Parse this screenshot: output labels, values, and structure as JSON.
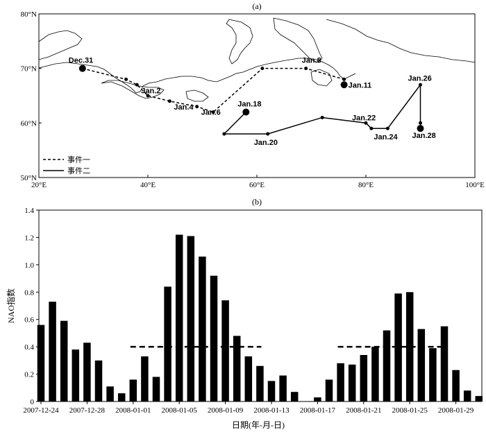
{
  "chart_data": [
    {
      "type": "map",
      "panel_label": "(a)",
      "lon_range": [
        20,
        100
      ],
      "lat_range": [
        50,
        80
      ],
      "x_ticks": [
        "20°E",
        "40°E",
        "60°E",
        "80°E",
        "100°E"
      ],
      "y_ticks": [
        "50°N",
        "60°N",
        "70°N",
        "80°N"
      ],
      "legend": [
        {
          "label": "事件一",
          "style": "dashed"
        },
        {
          "label": "事件二",
          "style": "solid"
        }
      ],
      "tracks": [
        {
          "style": "dashed",
          "points": [
            {
              "lon": 28,
              "lat": 70,
              "label": "Dec.31",
              "size": "large"
            },
            {
              "lon": 36,
              "lat": 68,
              "label": "",
              "size": "small"
            },
            {
              "lon": 38,
              "lat": 67,
              "label": "Jan.2",
              "size": "small"
            },
            {
              "lon": 40,
              "lat": 65,
              "label": "",
              "size": "small"
            },
            {
              "lon": 44,
              "lat": 64,
              "label": "Jan.4",
              "size": "small"
            },
            {
              "lon": 49,
              "lat": 63,
              "label": "Jan.6",
              "size": "small"
            },
            {
              "lon": 52,
              "lat": 62,
              "label": "",
              "size": "small"
            },
            {
              "lon": 61,
              "lat": 70,
              "label": "",
              "size": "small"
            },
            {
              "lon": 69,
              "lat": 70,
              "label": "Jan.8",
              "size": "small"
            },
            {
              "lon": 76,
              "lat": 68,
              "label": "",
              "size": "small"
            },
            {
              "lon": 76,
              "lat": 67,
              "label": "Jan.11",
              "size": "large"
            }
          ]
        },
        {
          "style": "solid",
          "points": [
            {
              "lon": 58,
              "lat": 62,
              "label": "Jan.18",
              "size": "large"
            },
            {
              "lon": 54,
              "lat": 58,
              "label": "",
              "size": "small"
            },
            {
              "lon": 62,
              "lat": 58,
              "label": "Jan.20",
              "size": "small"
            },
            {
              "lon": 72,
              "lat": 61,
              "label": "",
              "size": "small"
            },
            {
              "lon": 80,
              "lat": 60,
              "label": "Jan.22",
              "size": "small"
            },
            {
              "lon": 81,
              "lat": 59,
              "label": "",
              "size": "small"
            },
            {
              "lon": 84,
              "lat": 59,
              "label": "Jan.24",
              "size": "small"
            },
            {
              "lon": 90,
              "lat": 67,
              "label": "Jan.26",
              "size": "small"
            },
            {
              "lon": 90,
              "lat": 60,
              "label": "",
              "size": "small"
            },
            {
              "lon": 90,
              "lat": 59,
              "label": "Jan.28",
              "size": "large"
            }
          ]
        }
      ]
    },
    {
      "type": "bar",
      "panel_label": "(b)",
      "xlabel": "日期(年-月-日)",
      "ylabel": "NAO指数",
      "ylim": [
        0,
        1.4
      ],
      "y_ticks": [
        0,
        0.2,
        0.4,
        0.6,
        0.8,
        1.0,
        1.2,
        1.4
      ],
      "y_tick_labels": [
        "0",
        "0.2",
        "0.4",
        "0.6",
        "0.8",
        "1.0",
        "1.2",
        "1.4"
      ],
      "categories": [
        "2007-12-24",
        "2007-12-25",
        "2007-12-26",
        "2007-12-27",
        "2007-12-28",
        "2007-12-29",
        "2007-12-30",
        "2007-12-31",
        "2008-01-01",
        "2008-01-02",
        "2008-01-03",
        "2008-01-04",
        "2008-01-05",
        "2008-01-06",
        "2008-01-07",
        "2008-01-08",
        "2008-01-09",
        "2008-01-10",
        "2008-01-11",
        "2008-01-12",
        "2008-01-13",
        "2008-01-14",
        "2008-01-15",
        "2008-01-16",
        "2008-01-17",
        "2008-01-18",
        "2008-01-19",
        "2008-01-20",
        "2008-01-21",
        "2008-01-22",
        "2008-01-23",
        "2008-01-24",
        "2008-01-25",
        "2008-01-26",
        "2008-01-27",
        "2008-01-28",
        "2008-01-29",
        "2008-01-30",
        "2008-01-31"
      ],
      "x_tick_labels": [
        "2007-12-24",
        "2007-12-28",
        "2008-01-01",
        "2008-01-05",
        "2008-01-09",
        "2008-01-13",
        "2008-01-17",
        "2008-01-21",
        "2008-01-25",
        "2008-01-29"
      ],
      "x_tick_step": 4,
      "leading_bars": [
        0.56
      ],
      "values": [
        0.56,
        0.73,
        0.59,
        0.38,
        0.43,
        0.3,
        0.11,
        0.06,
        0.16,
        0.33,
        0.18,
        0.84,
        1.22,
        1.21,
        1.06,
        0.92,
        0.74,
        0.48,
        0.33,
        0.26,
        0.15,
        0.19,
        0.07,
        0.0,
        0.03,
        0.16,
        0.28,
        0.27,
        0.34,
        0.4,
        0.52,
        0.79,
        0.8,
        0.53,
        0.39,
        0.55,
        0.23,
        0.08,
        0.04
      ],
      "threshold": {
        "value": 0.4,
        "segments": [
          [
            "2008-01-01",
            "2008-01-12"
          ],
          [
            "2008-01-19",
            "2008-01-28"
          ]
        ],
        "style": "dashed"
      }
    }
  ]
}
